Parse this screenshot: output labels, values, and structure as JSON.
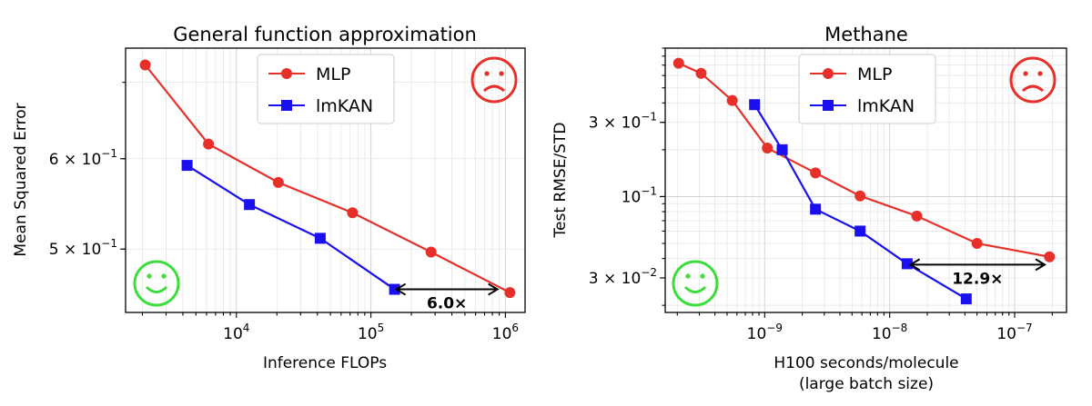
{
  "chart_data": [
    {
      "type": "line",
      "title": "General function approximation",
      "xlabel": "Inference FLOPs",
      "ylabel": "Mean Squared Error",
      "xscale": "log",
      "yscale": "log",
      "xlim": [
        1500,
        1400000
      ],
      "ylim": [
        0.44,
        0.75
      ],
      "xticks": [
        {
          "value": 10000,
          "base": "10",
          "exp": "4"
        },
        {
          "value": 100000,
          "base": "10",
          "exp": "5"
        },
        {
          "value": 1000000,
          "base": "10",
          "exp": "6"
        }
      ],
      "yticks": [
        {
          "value": 0.5,
          "coef": "5 × 10",
          "exp": "−1"
        },
        {
          "value": 0.6,
          "coef": "6 × 10",
          "exp": "−1"
        }
      ],
      "grid": true,
      "legend_position": "top-center",
      "series": [
        {
          "name": "MLP",
          "color": "#e8302a",
          "marker": "circle",
          "x": [
            2100,
            6200,
            20500,
            73000,
            280000,
            1080000
          ],
          "y": [
            0.725,
            0.618,
            0.572,
            0.538,
            0.497,
            0.458
          ]
        },
        {
          "name": "lmKAN",
          "color": "#1a0ff0",
          "marker": "square",
          "x": [
            4300,
            12500,
            42000,
            150000
          ],
          "y": [
            0.592,
            0.547,
            0.511,
            0.461
          ]
        }
      ],
      "annotation": {
        "text": "6.0×",
        "from_x": 150000,
        "to_x": 900000,
        "y": 0.461
      },
      "sad_face_color": "#e8302a",
      "happy_face_color": "#3ddc3d"
    },
    {
      "type": "line",
      "title": "Methane",
      "xlabel": "H100 seconds/molecule",
      "xlabel2": "(large batch size)",
      "ylabel": "Test RMSE/STD",
      "xscale": "log",
      "yscale": "log",
      "xlim": [
        1.6e-10,
        2.6e-07
      ],
      "ylim": [
        0.018,
        0.9
      ],
      "xticks": [
        {
          "value": 1e-09,
          "base": "10",
          "exp": "−9"
        },
        {
          "value": 1e-08,
          "base": "10",
          "exp": "−8"
        },
        {
          "value": 1e-07,
          "base": "10",
          "exp": "−7"
        }
      ],
      "yticks": [
        {
          "value": 0.03,
          "coef": "3 × 10",
          "exp": "−2"
        },
        {
          "value": 0.1,
          "coef": "10",
          "exp": "−1"
        },
        {
          "value": 0.3,
          "coef": "3 × 10",
          "exp": "−1"
        }
      ],
      "grid": true,
      "legend_position": "top-center",
      "series": [
        {
          "name": "MLP",
          "color": "#e8302a",
          "marker": "circle",
          "x": [
            2.05e-10,
            3.1e-10,
            5.5e-10,
            1.05e-09,
            2.55e-09,
            5.8e-09,
            1.65e-08,
            5e-08,
            1.9e-07
          ],
          "y": [
            0.72,
            0.62,
            0.415,
            0.205,
            0.142,
            0.101,
            0.075,
            0.05,
            0.041
          ]
        },
        {
          "name": "lmKAN",
          "color": "#1a0ff0",
          "marker": "square",
          "x": [
            8.3e-10,
            1.38e-09,
            2.55e-09,
            5.8e-09,
            1.38e-08,
            4.1e-08
          ],
          "y": [
            0.39,
            0.2,
            0.083,
            0.06,
            0.037,
            0.022
          ]
        }
      ],
      "annotation": {
        "text": "12.9×",
        "from_x": 1.42e-08,
        "to_x": 1.8e-07,
        "y": 0.0365
      },
      "sad_face_color": "#e8302a",
      "happy_face_color": "#3ddc3d"
    }
  ]
}
